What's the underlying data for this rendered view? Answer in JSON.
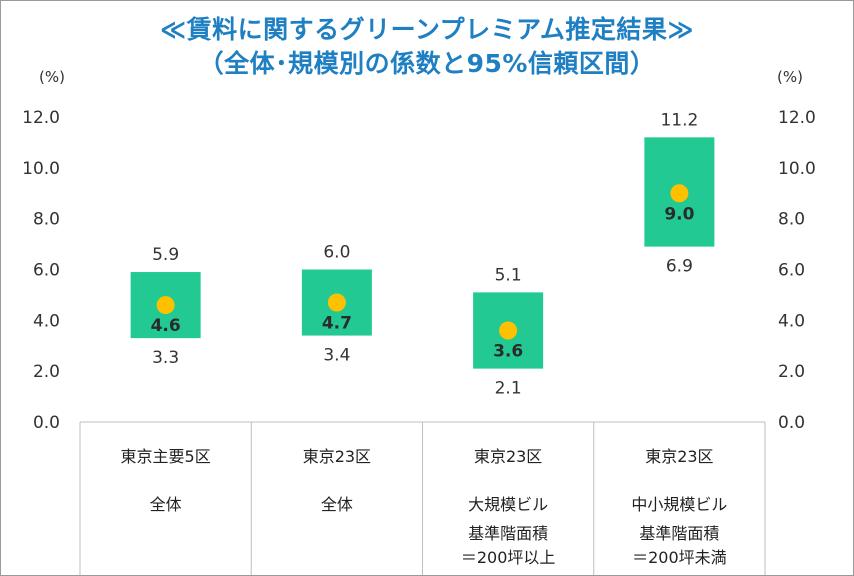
{
  "title_line1": "≪賃料に関するグリーンプレミアム推定結果≫",
  "title_line2": "（全体･規模別の係数と95%信頼区間）",
  "unit_left": "(%)",
  "unit_right": "(%)",
  "colors": {
    "title": "#1f7fc3",
    "interval": "#23c992",
    "point": "#ffc000",
    "grid": "#d9d9d9",
    "axis": "#bfbfbf"
  },
  "chart_data": {
    "type": "interval",
    "title": "≪賃料に関するグリーンプレミアム推定結果≫ （全体･規模別の係数と95%信頼区間）",
    "ylabel": "(%)",
    "ylim": [
      0,
      12
    ],
    "yticks": [
      "0.0",
      "2.0",
      "4.0",
      "6.0",
      "8.0",
      "10.0",
      "12.0"
    ],
    "grid": false,
    "categories": [
      {
        "lines": [
          "東京主要5区",
          "全体"
        ]
      },
      {
        "lines": [
          "東京23区",
          "全体"
        ]
      },
      {
        "lines": [
          "東京23区",
          "大規模ビル",
          "基準階面積",
          "＝200坪以上"
        ]
      },
      {
        "lines": [
          "東京23区",
          "中小規模ビル",
          "基準階面積",
          "＝200坪未満"
        ]
      }
    ],
    "series": [
      {
        "estimate": 4.6,
        "lower": 3.3,
        "upper": 5.9
      },
      {
        "estimate": 4.7,
        "lower": 3.4,
        "upper": 6.0
      },
      {
        "estimate": 3.6,
        "lower": 2.1,
        "upper": 5.1
      },
      {
        "estimate": 9.0,
        "lower": 6.9,
        "upper": 11.2
      }
    ]
  }
}
